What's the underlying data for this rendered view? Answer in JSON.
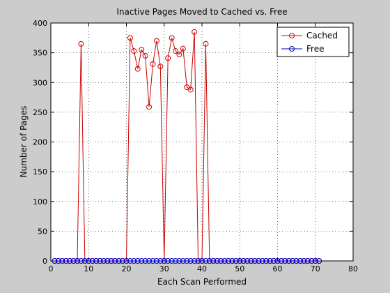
{
  "chart_data": {
    "type": "line",
    "title": "Inactive Pages Moved to Cached vs. Free",
    "xlabel": "Each Scan Performed",
    "ylabel": "Number of Pages",
    "xlim": [
      0,
      80
    ],
    "ylim": [
      0,
      400
    ],
    "xticks": [
      0,
      10,
      20,
      30,
      40,
      50,
      60,
      70,
      80
    ],
    "yticks": [
      0,
      50,
      100,
      150,
      200,
      250,
      300,
      350,
      400
    ],
    "grid": true,
    "legend_position": "top-right",
    "series": [
      {
        "name": "Cached",
        "color": "#cc0000",
        "marker": "circle",
        "x": [
          1,
          2,
          3,
          4,
          5,
          6,
          7,
          8,
          9,
          10,
          11,
          12,
          13,
          14,
          15,
          16,
          17,
          18,
          19,
          20,
          21,
          22,
          23,
          24,
          25,
          26,
          27,
          28,
          29,
          30,
          31,
          32,
          33,
          34,
          35,
          36,
          37,
          38,
          39,
          40,
          41,
          42,
          43,
          44,
          45,
          46,
          47,
          48,
          49,
          50,
          51,
          52,
          53,
          54,
          55,
          56,
          57,
          58,
          59,
          60,
          61,
          62,
          63,
          64,
          65,
          66,
          67,
          68,
          69,
          70,
          71
        ],
        "y": [
          0,
          0,
          0,
          0,
          0,
          0,
          0,
          365,
          0,
          0,
          0,
          0,
          0,
          0,
          0,
          0,
          0,
          0,
          0,
          0,
          375,
          353,
          323,
          355,
          345,
          259,
          331,
          370,
          327,
          0,
          341,
          375,
          353,
          347,
          357,
          292,
          288,
          385,
          0,
          0,
          365,
          0,
          0,
          0,
          0,
          0,
          0,
          0,
          0,
          0,
          0,
          0,
          0,
          0,
          0,
          0,
          0,
          0,
          0,
          0,
          0,
          0,
          0,
          0,
          0,
          0,
          0,
          0,
          0,
          0,
          0
        ]
      },
      {
        "name": "Free",
        "color": "#0000cc",
        "marker": "circle",
        "x": [
          1,
          2,
          3,
          4,
          5,
          6,
          7,
          8,
          9,
          10,
          11,
          12,
          13,
          14,
          15,
          16,
          17,
          18,
          19,
          20,
          21,
          22,
          23,
          24,
          25,
          26,
          27,
          28,
          29,
          30,
          31,
          32,
          33,
          34,
          35,
          36,
          37,
          38,
          39,
          40,
          41,
          42,
          43,
          44,
          45,
          46,
          47,
          48,
          49,
          50,
          51,
          52,
          53,
          54,
          55,
          56,
          57,
          58,
          59,
          60,
          61,
          62,
          63,
          64,
          65,
          66,
          67,
          68,
          69,
          70,
          71
        ],
        "y": [
          0,
          0,
          0,
          0,
          0,
          0,
          0,
          0,
          0,
          0,
          0,
          0,
          0,
          0,
          0,
          0,
          0,
          0,
          0,
          0,
          0,
          0,
          0,
          0,
          0,
          0,
          0,
          0,
          0,
          0,
          0,
          0,
          0,
          0,
          0,
          0,
          0,
          0,
          0,
          0,
          0,
          0,
          0,
          0,
          0,
          0,
          0,
          0,
          0,
          0,
          0,
          0,
          0,
          0,
          0,
          0,
          0,
          0,
          0,
          0,
          0,
          0,
          0,
          0,
          0,
          0,
          0,
          0,
          0,
          0,
          0
        ]
      }
    ]
  }
}
